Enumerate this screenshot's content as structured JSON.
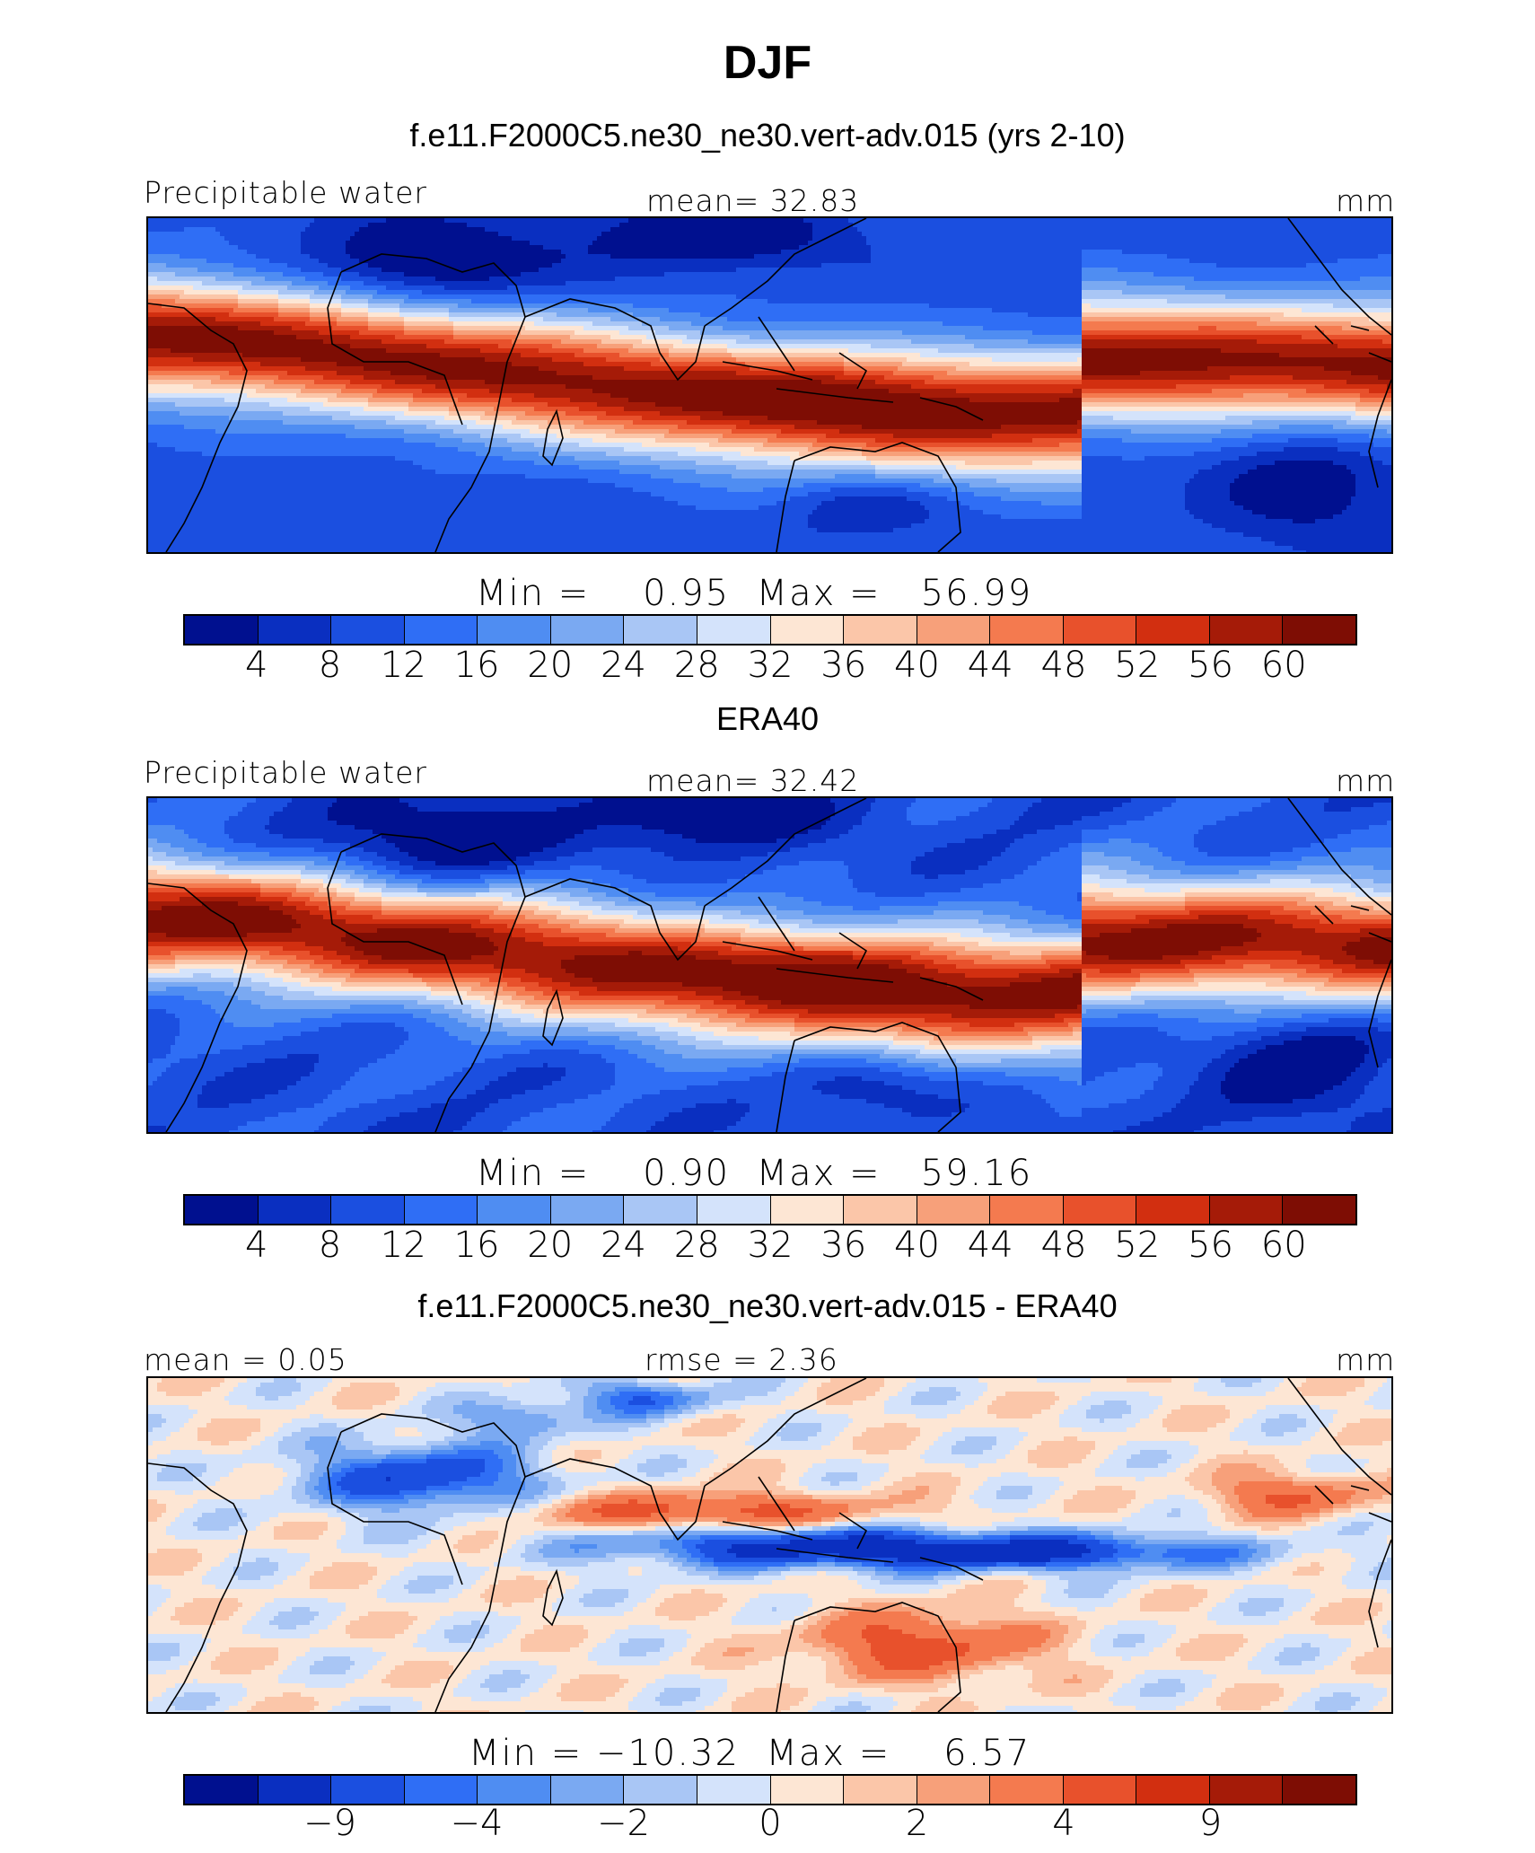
{
  "title": "DJF",
  "colors": {
    "levels": [
      "#00108f",
      "#0a2fc0",
      "#1b4fe0",
      "#2f6ef5",
      "#4f8df2",
      "#7aa9f2",
      "#a9c6f5",
      "#d4e3fb",
      "#fde6d4",
      "#fbc6a9",
      "#f7a07a",
      "#f47a4f",
      "#e8512c",
      "#d22f10",
      "#a51b08",
      "#7e0d04"
    ],
    "coast": "#000000"
  },
  "panels": [
    {
      "title": "f.e11.F2000C5.ne30_ne30.vert-adv.015 (yrs 2-10)",
      "left_label": "Precipitable water",
      "center_label": "mean=   32.83",
      "unit": "mm",
      "stats": "Min =    0.95  Max =   56.99",
      "ticks": [
        "4",
        "8",
        "12",
        "16",
        "20",
        "24",
        "28",
        "32",
        "36",
        "40",
        "44",
        "48",
        "52",
        "56",
        "60"
      ]
    },
    {
      "title": "ERA40",
      "left_label": "Precipitable water",
      "center_label": "mean=   32.42",
      "unit": "mm",
      "stats": "Min =    0.90  Max =   59.16",
      "ticks": [
        "4",
        "8",
        "12",
        "16",
        "20",
        "24",
        "28",
        "32",
        "36",
        "40",
        "44",
        "48",
        "52",
        "56",
        "60"
      ]
    },
    {
      "title": "f.e11.F2000C5.ne30_ne30.vert-adv.015 - ERA40",
      "left_label": "mean =   0.05",
      "center_label": "rmse =    2.36",
      "unit": "mm",
      "stats": "Min = −10.32  Max =    6.57",
      "ticks": [
        "−9",
        "−4",
        "−2",
        "0",
        "2",
        "4",
        "9"
      ]
    }
  ],
  "chart_data": [
    {
      "type": "heatmap",
      "title": "f.e11.F2000C5.ne30_ne30.vert-adv.015 (yrs 2-10)",
      "variable": "Precipitable water",
      "units": "mm",
      "mean": 32.83,
      "min": 0.95,
      "max": 56.99,
      "contour_levels": [
        4,
        8,
        12,
        16,
        20,
        24,
        28,
        32,
        36,
        40,
        44,
        48,
        52,
        56,
        60
      ]
    },
    {
      "type": "heatmap",
      "title": "ERA40",
      "variable": "Precipitable water",
      "units": "mm",
      "mean": 32.42,
      "min": 0.9,
      "max": 59.16,
      "contour_levels": [
        4,
        8,
        12,
        16,
        20,
        24,
        28,
        32,
        36,
        40,
        44,
        48,
        52,
        56,
        60
      ]
    },
    {
      "type": "heatmap",
      "title": "f.e11.F2000C5.ne30_ne30.vert-adv.015 - ERA40",
      "units": "mm",
      "mean": 0.05,
      "rmse": 2.36,
      "min": -10.32,
      "max": 6.57,
      "contour_levels": [
        -9,
        -4,
        -2,
        0,
        2,
        4,
        9
      ]
    }
  ]
}
